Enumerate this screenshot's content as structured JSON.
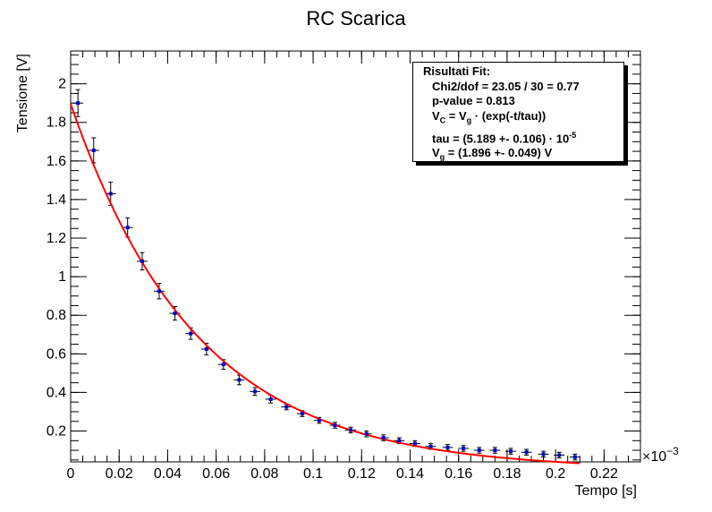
{
  "chart_data": {
    "type": "scatter",
    "title": "RC Scarica",
    "xlabel": "Tempo [s]",
    "ylabel": "Tensione [V]",
    "x_exponent_label": "×10",
    "x_exponent_power": "−3",
    "xlim": [
      0,
      0.235
    ],
    "ylim": [
      0.04,
      2.17
    ],
    "x_ticks": [
      0,
      0.02,
      0.04,
      0.06,
      0.08,
      0.1,
      0.12,
      0.14,
      0.16,
      0.18,
      0.2,
      0.22
    ],
    "x_tick_labels": [
      "0",
      "0.02",
      "0.04",
      "0.06",
      "0.08",
      "0.1",
      "0.12",
      "0.14",
      "0.16",
      "0.18",
      "0.2",
      "0.22"
    ],
    "y_ticks": [
      0.2,
      0.4,
      0.6,
      0.8,
      1,
      1.2,
      1.4,
      1.6,
      1.8,
      2
    ],
    "y_tick_labels": [
      "0.2",
      "0.4",
      "0.6",
      "0.8",
      "1",
      "1.2",
      "1.4",
      "1.6",
      "1.8",
      "2"
    ],
    "points": {
      "x": [
        0.003,
        0.0095,
        0.0165,
        0.0235,
        0.0295,
        0.0365,
        0.043,
        0.0495,
        0.056,
        0.063,
        0.0695,
        0.076,
        0.0825,
        0.089,
        0.0955,
        0.1025,
        0.109,
        0.1155,
        0.122,
        0.129,
        0.1355,
        0.142,
        0.1485,
        0.1555,
        0.162,
        0.1685,
        0.175,
        0.1815,
        0.188,
        0.195,
        0.2015,
        0.208
      ],
      "y": [
        1.9,
        1.655,
        1.43,
        1.255,
        1.08,
        0.925,
        0.81,
        0.705,
        0.625,
        0.545,
        0.465,
        0.405,
        0.365,
        0.325,
        0.29,
        0.255,
        0.23,
        0.205,
        0.185,
        0.165,
        0.15,
        0.135,
        0.12,
        0.115,
        0.11,
        0.1,
        0.1,
        0.095,
        0.09,
        0.08,
        0.075,
        0.065
      ],
      "x_err": 0.0022,
      "y_err": [
        0.07,
        0.065,
        0.06,
        0.05,
        0.045,
        0.04,
        0.035,
        0.03,
        0.03,
        0.025,
        0.025,
        0.02,
        0.02,
        0.015,
        0.015,
        0.015,
        0.015,
        0.015,
        0.015,
        0.015,
        0.015,
        0.015,
        0.015,
        0.015,
        0.015,
        0.015,
        0.015,
        0.015,
        0.015,
        0.015,
        0.015,
        0.015
      ],
      "color": "#0000cc",
      "error_color": "#000000"
    },
    "fit": {
      "A": 1.896,
      "tau": 5.189e-05,
      "x_range": [
        0,
        0.21
      ],
      "color": "#ff0000"
    },
    "stats": {
      "header": "Risultati Fit:",
      "chi2": "Chi2/dof = 23.05 / 30 = 0.77",
      "pvalue": "p-value  = 0.813",
      "vc_sym": "V",
      "vc_sub": "C",
      "vc_eq": " = V",
      "vg_sub": "g",
      "vc_tail": " · (exp(-t/tau))",
      "tau_text": "tau = (5.189 +- 0.106)  · 10",
      "tau_exp": "-5",
      "vg_sym": "V",
      "vg_text": " = (1.896 +- 0.049) V"
    },
    "grid": false,
    "legend": "top-right"
  }
}
